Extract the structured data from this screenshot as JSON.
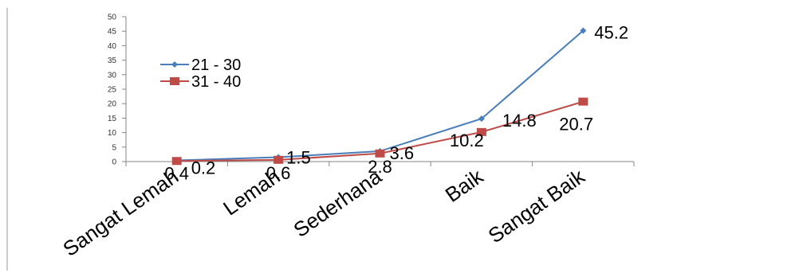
{
  "chart_data": {
    "type": "line",
    "title": "",
    "xlabel": "",
    "ylabel": "",
    "categories": [
      "Sangat Lemah",
      "Lemah",
      "Sederhana",
      "Baik",
      "Sangat Baik"
    ],
    "ylim": [
      0,
      50
    ],
    "yticks": [
      0,
      5,
      10,
      15,
      20,
      25,
      30,
      35,
      40,
      45,
      50
    ],
    "grid": false,
    "legend": "top-left",
    "series": [
      {
        "name": "21 - 30",
        "values": [
          0.4,
          1.5,
          3.6,
          14.8,
          45.2
        ],
        "labels": [
          "0.4",
          "1.5",
          "3.6",
          "14.8",
          "45.2"
        ],
        "color": "#4a7ebb",
        "marker": "diamond"
      },
      {
        "name": "31 - 40",
        "values": [
          0.2,
          0.6,
          2.8,
          10.2,
          20.7
        ],
        "labels": [
          "0.2",
          "0.6",
          "2.8",
          "10.2",
          "20.7"
        ],
        "color": "#be4b48",
        "marker": "square"
      }
    ]
  }
}
